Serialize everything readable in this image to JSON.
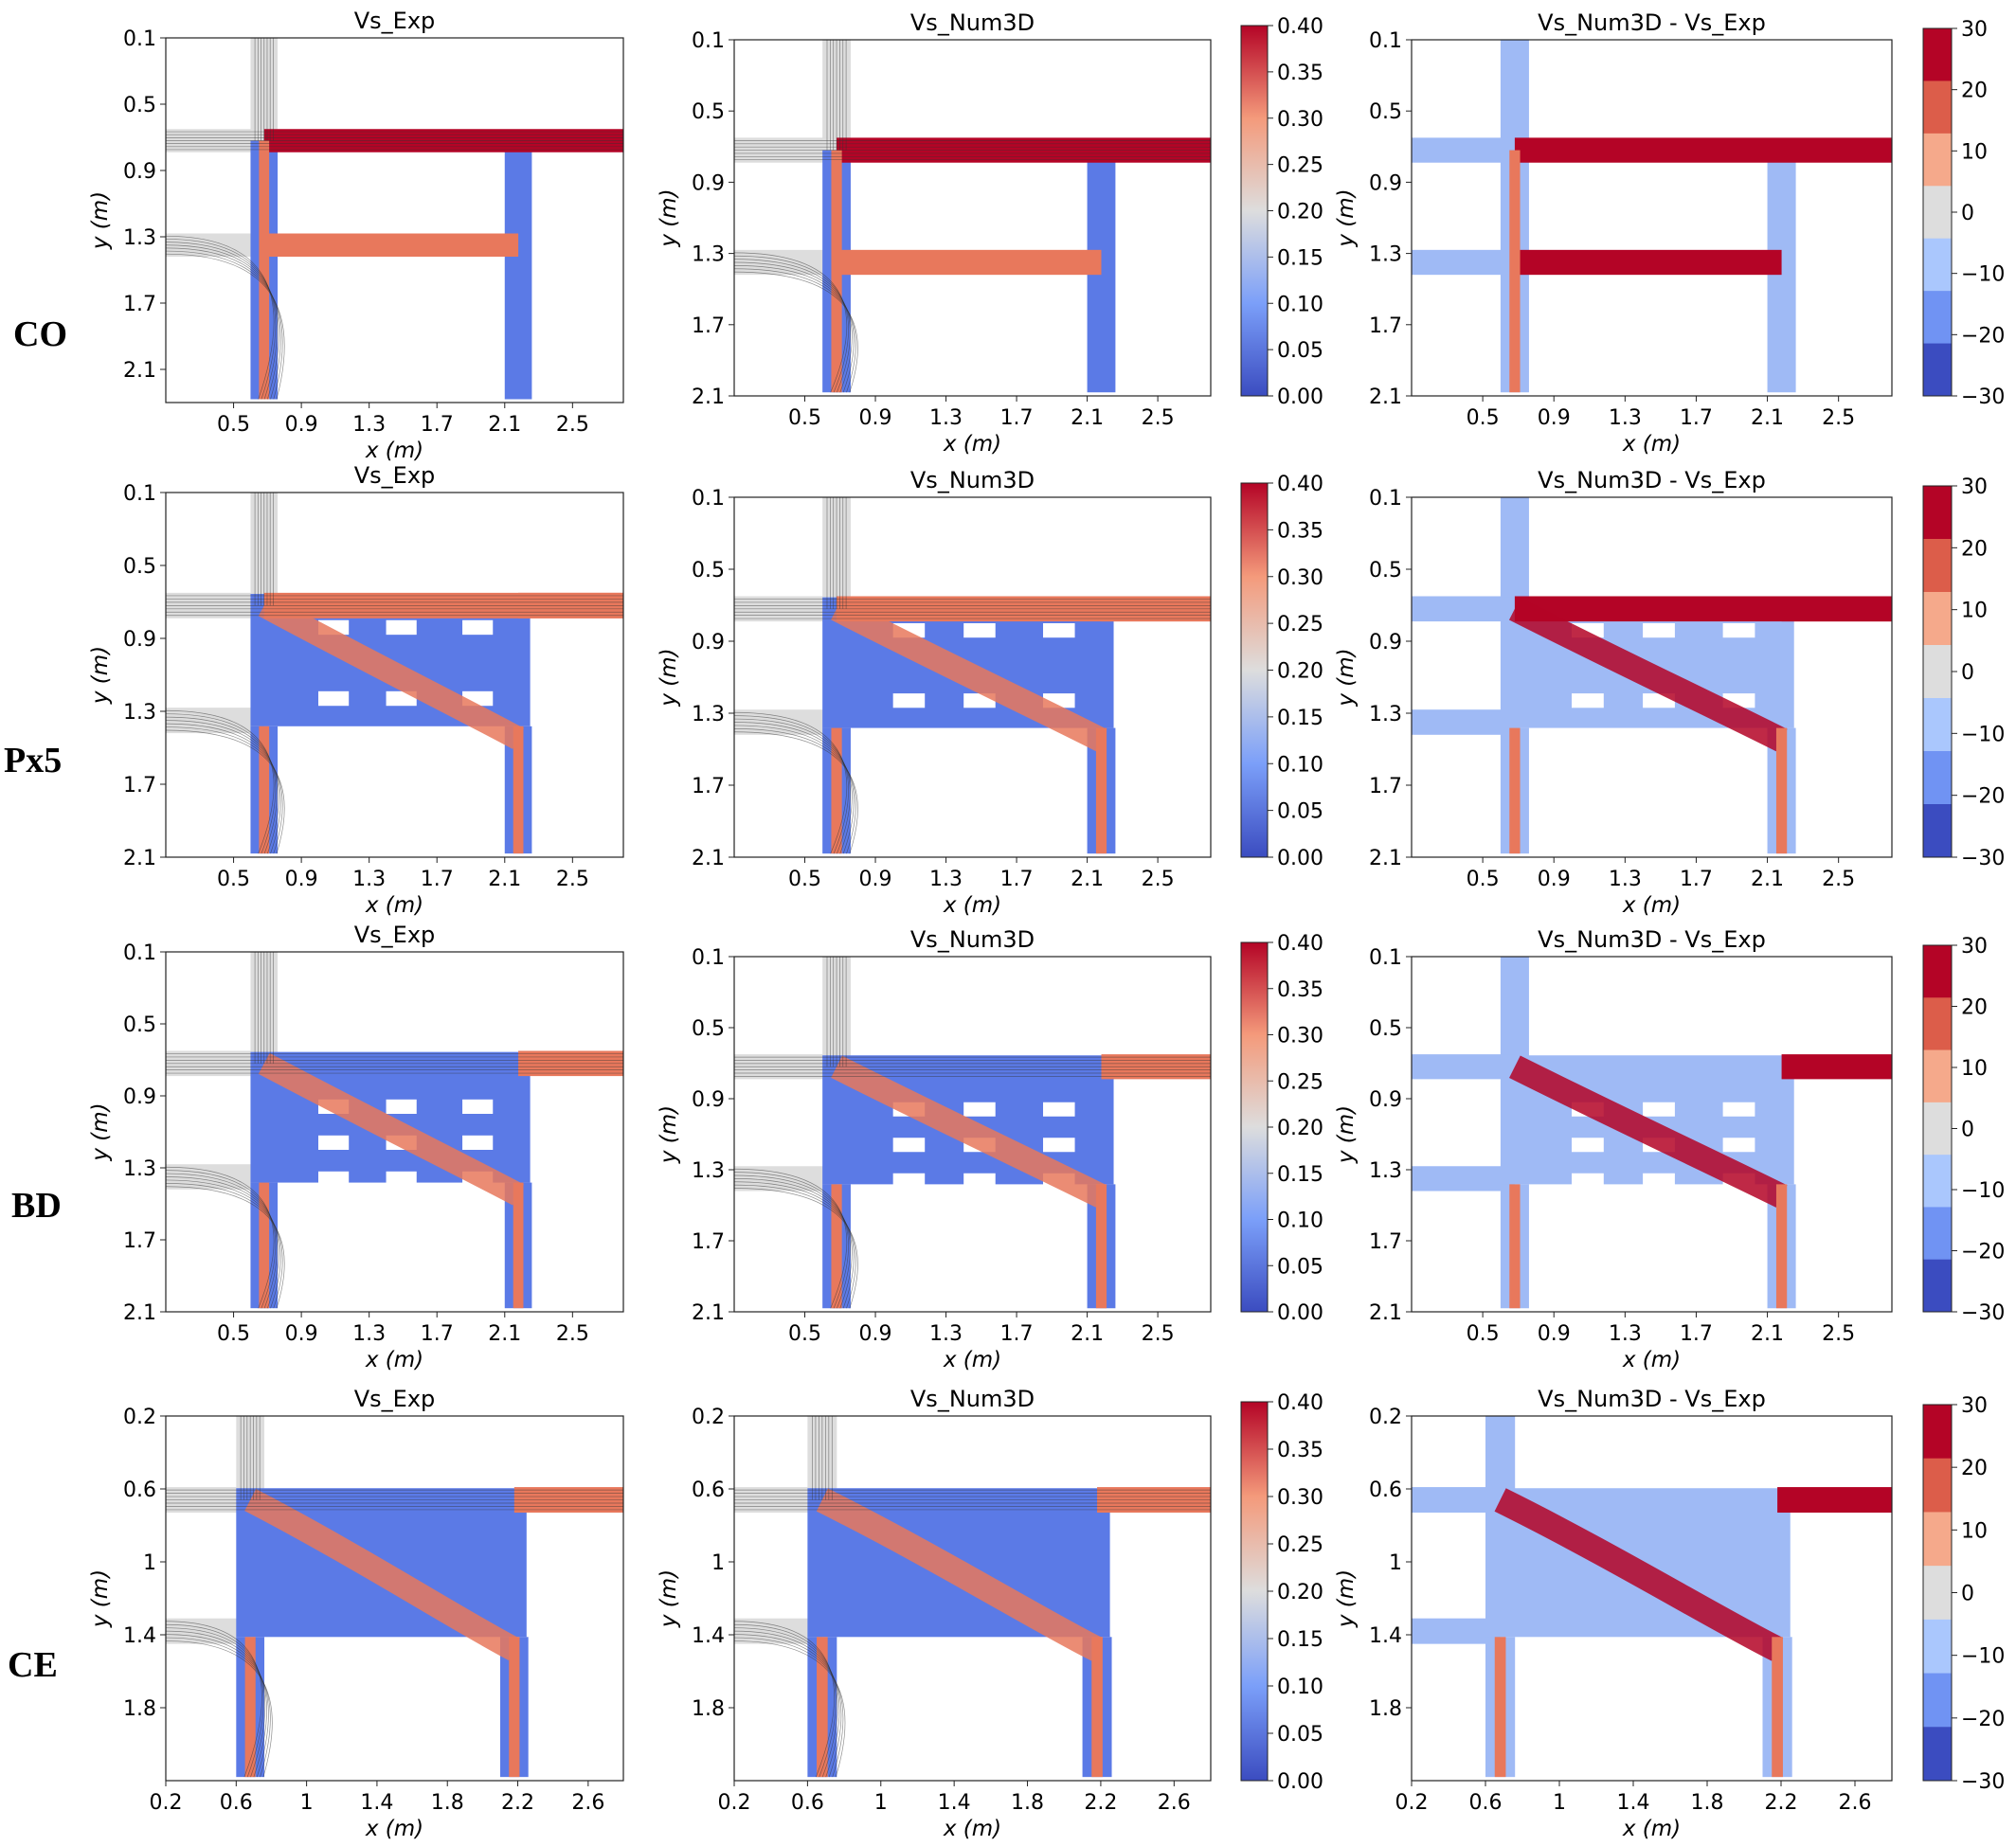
{
  "figure": {
    "row_labels": [
      "CO",
      "Px5",
      "BD",
      "CE"
    ],
    "column_titles": [
      "Vs_Exp",
      "Vs_Num3D",
      "Vs_Num3D - Vs_Exp"
    ],
    "speed_colorbar_ticks": [
      "0.40",
      "0.35",
      "0.30",
      "0.25",
      "0.20",
      "0.15",
      "0.10",
      "0.05",
      "0.00"
    ],
    "diff_colorbar_ticks": [
      "30",
      "20",
      "10",
      "0",
      "−10",
      "−20",
      "−30"
    ],
    "colors": {
      "low": "#3b4cc0",
      "mid": "#dddddd",
      "high": "#b40426"
    }
  },
  "chart_data": [
    {
      "type": "heatmap",
      "row": "CO",
      "title": "Vs_Exp",
      "xlabel": "x (m)",
      "ylabel": "y (m)",
      "xticks": [
        "0.5",
        "0.9",
        "1.3",
        "1.7",
        "2.1",
        "2.5"
      ],
      "yticks": [
        "0.1",
        "0.5",
        "0.9",
        "1.3",
        "1.7",
        "2.1"
      ],
      "xlim": [
        0.1,
        2.8
      ],
      "ylim": [
        2.3,
        0.1
      ],
      "colorbar": "speed",
      "colorbar_range": [
        0,
        0.4
      ]
    },
    {
      "type": "heatmap",
      "row": "CO",
      "title": "Vs_Num3D",
      "xlabel": "x (m)",
      "ylabel": "y (m)",
      "xticks": [
        "0.5",
        "0.9",
        "1.3",
        "1.7",
        "2.1",
        "2.5"
      ],
      "yticks": [
        "0.1",
        "0.5",
        "0.9",
        "1.3",
        "1.7",
        "2.1"
      ],
      "xlim": [
        0.1,
        2.8
      ],
      "ylim": [
        2.1,
        0.1
      ],
      "colorbar": "speed",
      "colorbar_range": [
        0,
        0.4
      ]
    },
    {
      "type": "heatmap",
      "row": "CO",
      "title": "Vs_Num3D - Vs_Exp",
      "xlabel": "x (m)",
      "ylabel": "y (m)",
      "xticks": [
        "0.5",
        "0.9",
        "1.3",
        "1.7",
        "2.1",
        "2.5"
      ],
      "yticks": [
        "0.1",
        "0.5",
        "0.9",
        "1.3",
        "1.7",
        "2.1"
      ],
      "xlim": [
        0.1,
        2.8
      ],
      "ylim": [
        2.1,
        0.1
      ],
      "colorbar": "diff",
      "colorbar_range": [
        -30,
        30
      ]
    },
    {
      "type": "heatmap",
      "row": "Px5",
      "title": "Vs_Exp",
      "xlabel": "x (m)",
      "ylabel": "y (m)",
      "xticks": [
        "0.5",
        "0.9",
        "1.3",
        "1.7",
        "2.1",
        "2.5"
      ],
      "yticks": [
        "0.1",
        "0.5",
        "0.9",
        "1.3",
        "1.7",
        "2.1"
      ],
      "xlim": [
        0.1,
        2.8
      ],
      "ylim": [
        2.1,
        0.1
      ],
      "colorbar": "speed",
      "colorbar_range": [
        0,
        0.4
      ]
    },
    {
      "type": "heatmap",
      "row": "Px5",
      "title": "Vs_Num3D",
      "xlabel": "x (m)",
      "ylabel": "y (m)",
      "xticks": [
        "0.5",
        "0.9",
        "1.3",
        "1.7",
        "2.1",
        "2.5"
      ],
      "yticks": [
        "0.1",
        "0.5",
        "0.9",
        "1.3",
        "1.7",
        "2.1"
      ],
      "xlim": [
        0.1,
        2.8
      ],
      "ylim": [
        2.1,
        0.1
      ],
      "colorbar": "speed",
      "colorbar_range": [
        0,
        0.4
      ]
    },
    {
      "type": "heatmap",
      "row": "Px5",
      "title": "Vs_Num3D - Vs_Exp",
      "xlabel": "x (m)",
      "ylabel": "y (m)",
      "xticks": [
        "0.5",
        "0.9",
        "1.3",
        "1.7",
        "2.1",
        "2.5"
      ],
      "yticks": [
        "0.1",
        "0.5",
        "0.9",
        "1.3",
        "1.7",
        "2.1"
      ],
      "xlim": [
        0.1,
        2.8
      ],
      "ylim": [
        2.1,
        0.1
      ],
      "colorbar": "diff",
      "colorbar_range": [
        -30,
        30
      ]
    },
    {
      "type": "heatmap",
      "row": "BD",
      "title": "Vs_Exp",
      "xlabel": "x (m)",
      "ylabel": "y (m)",
      "xticks": [
        "0.5",
        "0.9",
        "1.3",
        "1.7",
        "2.1",
        "2.5"
      ],
      "yticks": [
        "0.1",
        "0.5",
        "0.9",
        "1.3",
        "1.7",
        "2.1"
      ],
      "xlim": [
        0.1,
        2.8
      ],
      "ylim": [
        2.1,
        0.1
      ],
      "colorbar": "speed",
      "colorbar_range": [
        0,
        0.4
      ]
    },
    {
      "type": "heatmap",
      "row": "BD",
      "title": "Vs_Num3D",
      "xlabel": "x (m)",
      "ylabel": "y (m)",
      "xticks": [
        "0.5",
        "0.9",
        "1.3",
        "1.7",
        "2.1",
        "2.5"
      ],
      "yticks": [
        "0.1",
        "0.5",
        "0.9",
        "1.3",
        "1.7",
        "2.1"
      ],
      "xlim": [
        0.1,
        2.8
      ],
      "ylim": [
        2.1,
        0.1
      ],
      "colorbar": "speed",
      "colorbar_range": [
        0,
        0.4
      ]
    },
    {
      "type": "heatmap",
      "row": "BD",
      "title": "Vs_Num3D - Vs_Exp",
      "xlabel": "x (m)",
      "ylabel": "y (m)",
      "xticks": [
        "0.5",
        "0.9",
        "1.3",
        "1.7",
        "2.1",
        "2.5"
      ],
      "yticks": [
        "0.1",
        "0.5",
        "0.9",
        "1.3",
        "1.7",
        "2.1"
      ],
      "xlim": [
        0.1,
        2.8
      ],
      "ylim": [
        2.1,
        0.1
      ],
      "colorbar": "diff",
      "colorbar_range": [
        -30,
        30
      ]
    },
    {
      "type": "heatmap",
      "row": "CE",
      "title": "Vs_Exp",
      "xlabel": "x (m)",
      "ylabel": "y (m)",
      "xticks": [
        "0.2",
        "0.6",
        "1",
        "1.4",
        "1.8",
        "2.2",
        "2.6"
      ],
      "yticks": [
        "0.2",
        "0.6",
        "1",
        "1.4",
        "1.8"
      ],
      "xlim": [
        0.2,
        2.8
      ],
      "ylim": [
        2.2,
        0.2
      ],
      "colorbar": "speed",
      "colorbar_range": [
        0,
        0.4
      ]
    },
    {
      "type": "heatmap",
      "row": "CE",
      "title": "Vs_Num3D",
      "xlabel": "x (m)",
      "ylabel": "y (m)",
      "xticks": [
        "0.2",
        "0.6",
        "1",
        "1.4",
        "1.8",
        "2.2",
        "2.6"
      ],
      "yticks": [
        "0.2",
        "0.6",
        "1",
        "1.4",
        "1.8"
      ],
      "xlim": [
        0.2,
        2.8
      ],
      "ylim": [
        2.2,
        0.2
      ],
      "colorbar": "speed",
      "colorbar_range": [
        0,
        0.4
      ]
    },
    {
      "type": "heatmap",
      "row": "CE",
      "title": "Vs_Num3D - Vs_Exp",
      "xlabel": "x (m)",
      "ylabel": "y (m)",
      "xticks": [
        "0.2",
        "0.6",
        "1",
        "1.4",
        "1.8",
        "2.2",
        "2.6"
      ],
      "yticks": [
        "0.2",
        "0.6",
        "1",
        "1.4",
        "1.8"
      ],
      "xlim": [
        0.2,
        2.8
      ],
      "ylim": [
        2.2,
        0.2
      ],
      "colorbar": "diff",
      "colorbar_range": [
        -30,
        30
      ]
    }
  ]
}
